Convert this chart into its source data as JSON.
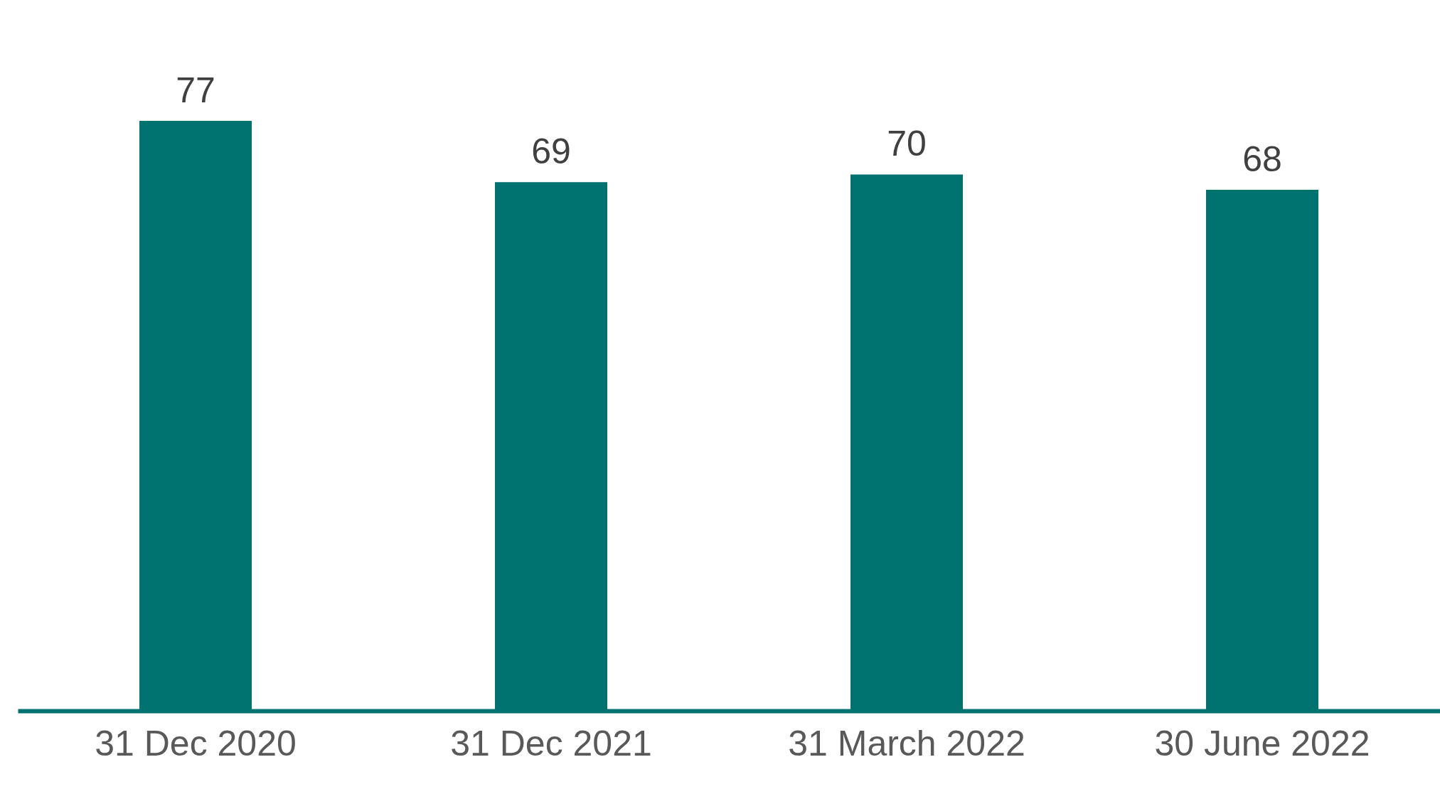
{
  "chart_data": {
    "type": "bar",
    "categories": [
      "31 Dec 2020",
      "31 Dec 2021",
      "31 March 2022",
      "30 June 2022"
    ],
    "values": [
      77,
      69,
      70,
      68
    ],
    "color": "#007370",
    "data_labels": true
  }
}
